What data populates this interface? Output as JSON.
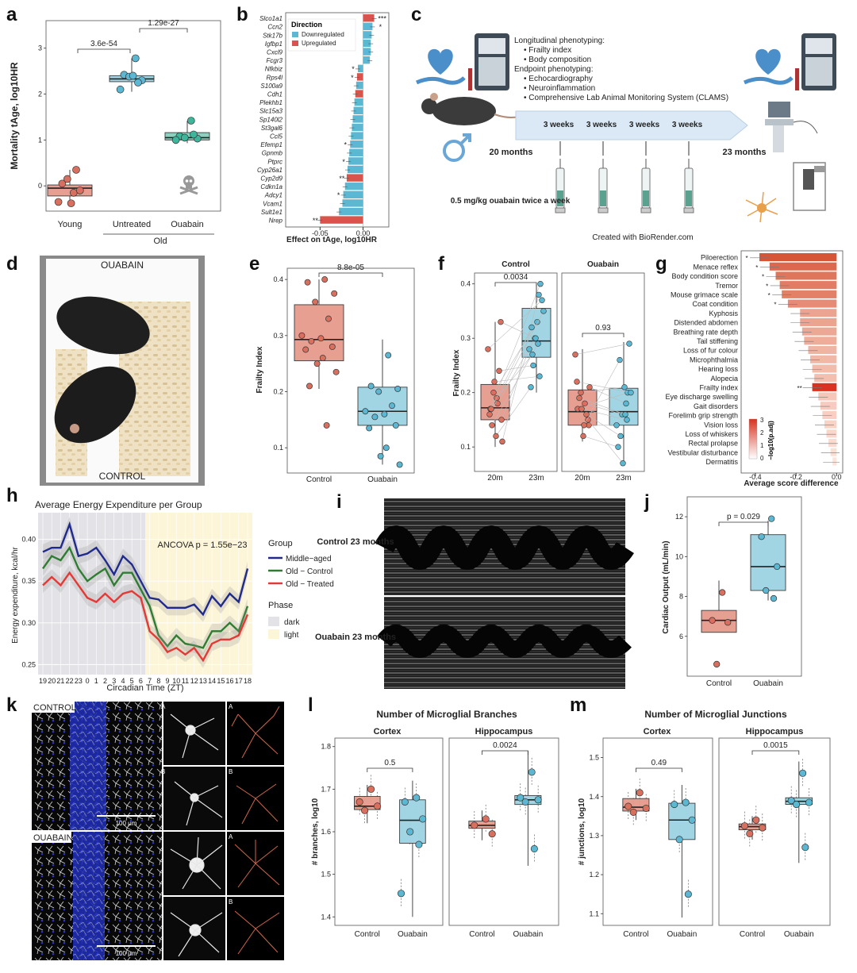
{
  "panel_labels": {
    "a": "a",
    "b": "b",
    "c": "c",
    "d": "d",
    "e": "e",
    "f": "f",
    "g": "g",
    "h": "h",
    "i": "i",
    "j": "j",
    "k": "k",
    "l": "l",
    "m": "m"
  },
  "colors": {
    "red": "#d9705f",
    "blue": "#5bb7d2",
    "teal": "#3fb59b",
    "navy": "#1f2a8c",
    "green": "#2e7d32",
    "orange_red": "#e53935"
  },
  "chart_data": [
    {
      "panel": "a",
      "type": "box",
      "ylabel": "Mortality tAge, log10HR",
      "yticks": [
        0,
        1,
        2,
        3
      ],
      "ylim": [
        -0.55,
        3.6
      ],
      "categories": [
        "Young",
        "Untreated",
        "Ouabain"
      ],
      "group_label": "Old",
      "boxes": [
        {
          "name": "Young",
          "q1": -0.22,
          "median": -0.05,
          "q3": 0.02,
          "whisker_low": -0.38,
          "whisker_high": 0.35,
          "points": [
            -0.15,
            0.05,
            -0.1,
            0.15,
            0.35,
            -0.35,
            -0.38
          ]
        },
        {
          "name": "Untreated",
          "q1": 2.27,
          "median": 2.33,
          "q3": 2.4,
          "whisker_low": 2.05,
          "whisker_high": 2.78,
          "points": [
            2.78,
            2.42,
            2.3,
            2.38,
            2.25,
            2.1,
            2.4
          ]
        },
        {
          "name": "Ouabain",
          "q1": 1.0,
          "median": 1.05,
          "q3": 1.16,
          "whisker_low": 0.93,
          "whisker_high": 1.42,
          "points": [
            1.42,
            1.08,
            1.03,
            1.05,
            1.12,
            1.0
          ]
        }
      ],
      "brackets": [
        {
          "from": "Young",
          "to": "Untreated",
          "label": "3.6e-54"
        },
        {
          "from": "Untreated",
          "to": "Ouabain",
          "label": "1.29e-27"
        }
      ]
    },
    {
      "panel": "b",
      "type": "bar",
      "xlabel": "Effect on tAge, log10HR",
      "xticks": [
        -0.05,
        0.0
      ],
      "xlim": [
        -0.09,
        0.03
      ],
      "legend_title": "Direction",
      "legend": [
        "Downregulated",
        "Upregulated"
      ],
      "genes": [
        "Slco1a1",
        "Ccn2",
        "Stk17b",
        "Igfbp1",
        "Cxcl9",
        "Fcgr3",
        "Nfkbiz",
        "Rps4l",
        "S100a9",
        "Cdh1",
        "Plekhb1",
        "Slc15a3",
        "Sp140l2",
        "St3gal6",
        "Ccl5",
        "Efemp1",
        "Gpnmb",
        "Ptprc",
        "Cyp26a1",
        "Cyp2d9",
        "Cdkn1a",
        "Adcy1",
        "Vcam1",
        "Sult1e1",
        "Nrep"
      ],
      "values": [
        0.013,
        0.011,
        0.01,
        0.009,
        0.009,
        0.008,
        -0.006,
        -0.007,
        -0.008,
        -0.009,
        -0.01,
        -0.011,
        -0.012,
        -0.013,
        -0.014,
        -0.015,
        -0.016,
        -0.017,
        -0.018,
        -0.019,
        -0.021,
        -0.023,
        -0.024,
        -0.028,
        -0.05
      ],
      "direction": [
        "Upregulated",
        "Downregulated",
        "Downregulated",
        "Downregulated",
        "Downregulated",
        "Downregulated",
        "Downregulated",
        "Upregulated",
        "Downregulated",
        "Upregulated",
        "Downregulated",
        "Downregulated",
        "Downregulated",
        "Downregulated",
        "Downregulated",
        "Downregulated",
        "Downregulated",
        "Downregulated",
        "Downregulated",
        "Upregulated",
        "Downregulated",
        "Downregulated",
        "Downregulated",
        "Downregulated",
        "Upregulated"
      ],
      "stars": [
        "***",
        "*",
        "",
        "",
        "",
        "",
        "*",
        "*",
        "",
        "",
        "",
        "",
        "",
        "",
        "",
        "*",
        "",
        "*",
        "",
        "**",
        "",
        "*",
        "",
        "",
        "**"
      ]
    },
    {
      "panel": "e",
      "type": "box",
      "ylabel": "Frailty Index",
      "yticks": [
        0.1,
        0.2,
        0.3,
        0.4
      ],
      "ylim": [
        0.055,
        0.42
      ],
      "categories": [
        "Control",
        "Ouabain"
      ],
      "boxes": [
        {
          "name": "Control",
          "q1": 0.255,
          "median": 0.293,
          "q3": 0.355,
          "whisker_low": 0.205,
          "whisker_high": 0.4,
          "points": [
            0.4,
            0.395,
            0.375,
            0.36,
            0.33,
            0.3,
            0.295,
            0.29,
            0.28,
            0.275,
            0.26,
            0.25,
            0.235,
            0.21,
            0.14
          ]
        },
        {
          "name": "Ouabain",
          "q1": 0.14,
          "median": 0.165,
          "q3": 0.208,
          "whisker_low": 0.07,
          "whisker_high": 0.293,
          "points": [
            0.265,
            0.21,
            0.205,
            0.2,
            0.175,
            0.165,
            0.16,
            0.155,
            0.14,
            0.135,
            0.1,
            0.085,
            0.07
          ]
        }
      ],
      "brackets": [
        {
          "from": "Control",
          "to": "Ouabain",
          "label": "8.8e-05"
        }
      ]
    },
    {
      "panel": "f",
      "type": "box",
      "ylabel": "Frailty Index",
      "yticks": [
        0.1,
        0.2,
        0.3,
        0.4
      ],
      "ylim": [
        0.055,
        0.42
      ],
      "facets": [
        "Control",
        "Ouabain"
      ],
      "categories": [
        "20m",
        "23m"
      ],
      "boxes": [
        {
          "facet": "Control",
          "name": "20m",
          "q1": 0.15,
          "median": 0.172,
          "q3": 0.215,
          "whisker_low": 0.1,
          "whisker_high": 0.33
        },
        {
          "facet": "Control",
          "name": "23m",
          "q1": 0.265,
          "median": 0.295,
          "q3": 0.355,
          "whisker_low": 0.2,
          "whisker_high": 0.4
        },
        {
          "facet": "Ouabain",
          "name": "20m",
          "q1": 0.14,
          "median": 0.165,
          "q3": 0.205,
          "whisker_low": 0.11,
          "whisker_high": 0.28
        },
        {
          "facet": "Ouabain",
          "name": "23m",
          "q1": 0.14,
          "median": 0.165,
          "q3": 0.208,
          "whisker_low": 0.07,
          "whisker_high": 0.293
        }
      ],
      "brackets": [
        {
          "facet": "Control",
          "label": "0.0034"
        },
        {
          "facet": "Ouabain",
          "label": "0.93"
        }
      ]
    },
    {
      "panel": "g",
      "type": "bar",
      "xlabel": "Average score difference",
      "xticks": [
        -0.4,
        -0.2,
        0.0
      ],
      "xlim": [
        -0.47,
        0.03
      ],
      "legend_title": "−log10(p.adj)",
      "legend_ticks": [
        0,
        1,
        2,
        3
      ],
      "items": [
        "Piloerection",
        "Menace reflex",
        "Body condition score",
        "Tremor",
        "Mouse grimace scale",
        "Coat condition",
        "Kyphosis",
        "Distended abdomen",
        "Breathing rate depth",
        "Tail stiffening",
        "Loss of fur colour",
        "Microphthalmia",
        "Hearing loss",
        "Alopecia",
        "Frailty index",
        "Eye discharge swelling",
        "Gait disorders",
        "Forelimb grip strength",
        "Vision loss",
        "Loss of whiskers",
        "Rectal prolapse",
        "Vestibular disturbance",
        "Dermatitis"
      ],
      "values": [
        -0.38,
        -0.33,
        -0.3,
        -0.28,
        -0.27,
        -0.24,
        -0.18,
        -0.18,
        -0.17,
        -0.16,
        -0.14,
        -0.13,
        -0.12,
        -0.11,
        -0.12,
        -0.09,
        -0.08,
        -0.07,
        -0.06,
        -0.05,
        -0.04,
        -0.03,
        -0.02
      ],
      "stars": [
        "*",
        "*",
        "*",
        "*",
        "*",
        "*",
        "",
        "",
        "",
        "",
        "",
        "",
        "",
        "",
        "**",
        "",
        "",
        "",
        "",
        "",
        "",
        "",
        ""
      ]
    },
    {
      "panel": "h",
      "type": "line",
      "title": "Average Energy Expenditure per Group",
      "xlabel": "Circadian Time (ZT)",
      "ylabel": "Energy expenditure, kcal/hr",
      "x": [
        "19",
        "20",
        "21",
        "22",
        "23",
        "0",
        "1",
        "2",
        "3",
        "4",
        "5",
        "6",
        "7",
        "8",
        "9",
        "10",
        "11",
        "12",
        "13",
        "14",
        "15",
        "16",
        "17",
        "18"
      ],
      "yticks": [
        0.25,
        0.3,
        0.35,
        0.4
      ],
      "ylim": [
        0.238,
        0.432
      ],
      "annotation": "ANCOVA p = 1.55e−23",
      "series": [
        {
          "name": "Middle−aged",
          "color": "#1f2a8c",
          "values": [
            0.385,
            0.39,
            0.39,
            0.418,
            0.38,
            0.383,
            0.39,
            0.375,
            0.358,
            0.38,
            0.37,
            0.35,
            0.33,
            0.328,
            0.318,
            0.318,
            0.318,
            0.322,
            0.31,
            0.332,
            0.32,
            0.335,
            0.325,
            0.365
          ]
        },
        {
          "name": "Old − Control",
          "color": "#2e7d32",
          "values": [
            0.365,
            0.38,
            0.375,
            0.39,
            0.365,
            0.35,
            0.358,
            0.365,
            0.345,
            0.36,
            0.36,
            0.34,
            0.32,
            0.285,
            0.272,
            0.285,
            0.275,
            0.273,
            0.27,
            0.29,
            0.29,
            0.3,
            0.29,
            0.32
          ]
        },
        {
          "name": "Old − Treated",
          "color": "#e53935",
          "values": [
            0.345,
            0.355,
            0.345,
            0.36,
            0.345,
            0.33,
            0.325,
            0.335,
            0.325,
            0.335,
            0.338,
            0.33,
            0.29,
            0.28,
            0.265,
            0.27,
            0.262,
            0.27,
            0.255,
            0.275,
            0.28,
            0.28,
            0.285,
            0.31
          ]
        }
      ],
      "legend_title": "Group",
      "phase_title": "Phase",
      "phase_legend": [
        "dark",
        "light"
      ]
    },
    {
      "panel": "j",
      "type": "box",
      "ylabel": "Cardiac Output (mL/min)",
      "yticks": [
        6,
        8,
        10,
        12
      ],
      "ylim": [
        4.0,
        13.0
      ],
      "categories": [
        "Control",
        "Ouabain"
      ],
      "boxes": [
        {
          "name": "Control",
          "q1": 6.2,
          "median": 6.8,
          "q3": 7.3,
          "whisker_low": 6.2,
          "whisker_high": 8.8,
          "points": [
            8.2,
            6.8,
            6.7,
            4.6
          ]
        },
        {
          "name": "Ouabain",
          "q1": 8.3,
          "median": 9.5,
          "q3": 11.1,
          "whisker_low": 7.8,
          "whisker_high": 11.8,
          "points": [
            11.9,
            11.0,
            9.5,
            8.3,
            7.9
          ]
        }
      ],
      "brackets": [
        {
          "from": "Control",
          "to": "Ouabain",
          "label": "p = 0.029"
        }
      ]
    },
    {
      "panel": "l",
      "type": "box",
      "title": "Number of Microglial Branches",
      "ylabel": "# branches, log10",
      "yticks": [
        1.4,
        1.5,
        1.6,
        1.7,
        1.8
      ],
      "ylim": [
        1.38,
        1.82
      ],
      "facets": [
        "Cortex",
        "Hippocampus"
      ],
      "categories": [
        "Control",
        "Ouabain"
      ],
      "boxes": [
        {
          "facet": "Cortex",
          "name": "Control",
          "q1": 1.652,
          "median": 1.66,
          "q3": 1.683,
          "whisker_low": 1.62,
          "whisker_high": 1.71,
          "points": [
            1.7,
            1.67,
            1.66,
            1.65
          ]
        },
        {
          "facet": "Cortex",
          "name": "Ouabain",
          "q1": 1.573,
          "median": 1.627,
          "q3": 1.675,
          "whisker_low": 1.4,
          "whisker_high": 1.72,
          "points": [
            1.68,
            1.67,
            1.63,
            1.6,
            1.57,
            1.455
          ]
        },
        {
          "facet": "Hippocampus",
          "name": "Control",
          "q1": 1.608,
          "median": 1.615,
          "q3": 1.625,
          "whisker_low": 1.58,
          "whisker_high": 1.65,
          "points": [
            1.63,
            1.615,
            1.595
          ]
        },
        {
          "facet": "Hippocampus",
          "name": "Ouabain",
          "q1": 1.664,
          "median": 1.675,
          "q3": 1.685,
          "whisker_low": 1.52,
          "whisker_high": 1.79,
          "points": [
            1.74,
            1.68,
            1.675,
            1.67,
            1.56
          ]
        }
      ],
      "brackets": [
        {
          "facet": "Cortex",
          "label": "0.5"
        },
        {
          "facet": "Hippocampus",
          "label": "0.0024"
        }
      ]
    },
    {
      "panel": "m",
      "type": "box",
      "title": "Number of Microglial Junctions",
      "ylabel": "# junctions, log10",
      "yticks": [
        1.1,
        1.2,
        1.3,
        1.4,
        1.5
      ],
      "ylim": [
        1.07,
        1.55
      ],
      "facets": [
        "Cortex",
        "Hippocampus"
      ],
      "categories": [
        "Control",
        "Ouabain"
      ],
      "boxes": [
        {
          "facet": "Cortex",
          "name": "Control",
          "q1": 1.363,
          "median": 1.373,
          "q3": 1.395,
          "whisker_low": 1.34,
          "whisker_high": 1.42,
          "points": [
            1.41,
            1.375,
            1.37,
            1.36
          ]
        },
        {
          "facet": "Cortex",
          "name": "Ouabain",
          "q1": 1.29,
          "median": 1.34,
          "q3": 1.383,
          "whisker_low": 1.09,
          "whisker_high": 1.43,
          "points": [
            1.385,
            1.38,
            1.34,
            1.29,
            1.15
          ]
        },
        {
          "facet": "Hippocampus",
          "name": "Control",
          "q1": 1.315,
          "median": 1.323,
          "q3": 1.33,
          "whisker_low": 1.29,
          "whisker_high": 1.35,
          "points": [
            1.34,
            1.325,
            1.32,
            1.305
          ]
        },
        {
          "facet": "Hippocampus",
          "name": "Ouabain",
          "q1": 1.38,
          "median": 1.388,
          "q3": 1.397,
          "whisker_low": 1.23,
          "whisker_high": 1.49,
          "points": [
            1.46,
            1.39,
            1.385,
            1.38,
            1.27
          ]
        }
      ],
      "brackets": [
        {
          "facet": "Cortex",
          "label": "0.49"
        },
        {
          "facet": "Hippocampus",
          "label": "0.0015"
        }
      ]
    }
  ],
  "panel_c": {
    "title": "Longitudinal phenotyping:",
    "items1": [
      "Frailty index",
      "Body composition"
    ],
    "title2": "Endpoint phenotyping:",
    "items2": [
      "Echocardiography",
      "Neuroinflammation",
      "Comprehensive Lab Animal Monitoring System (CLAMS)"
    ],
    "timeline": [
      "3 weeks",
      "3 weeks",
      "3 weeks",
      "3 weeks"
    ],
    "start": "20 months",
    "end": "23 months",
    "dose": "0.5 mg/kg ouabain twice a week",
    "credit": "Created with BioRender.com"
  },
  "panel_d": {
    "top": "OUABAIN",
    "bottom": "CONTROL"
  },
  "panel_i": {
    "row1": "Control 23 months",
    "row2": "Ouabain 23 months"
  },
  "panel_k": {
    "row1": "CONTROL",
    "row2": "OUABAIN",
    "scale": "100 μm",
    "sub_a": "A",
    "sub_b": "B"
  }
}
